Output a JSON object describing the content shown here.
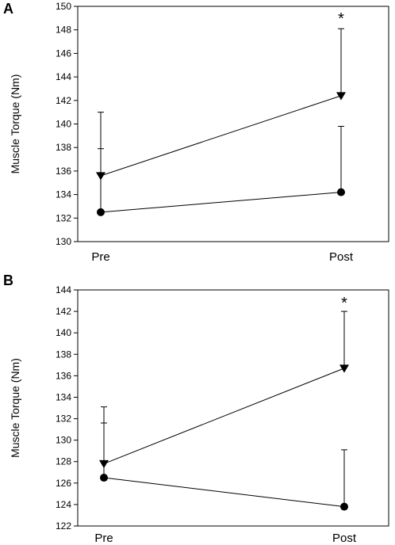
{
  "chart_data": [
    {
      "panel": "A",
      "type": "line",
      "categories": [
        "Pre",
        "Post"
      ],
      "ylabel": "Muscle Torque (Nm)",
      "ylim": [
        130,
        150
      ],
      "yticks": [
        "130",
        "132",
        "134",
        "136",
        "138",
        "140",
        "142",
        "144",
        "146",
        "148",
        "150"
      ],
      "grid": false,
      "annotation": "*",
      "series": [
        {
          "marker": "triangle-down",
          "values": [
            135.6,
            142.4
          ],
          "error_upper": [
            5.4,
            5.7
          ],
          "color": "#000000"
        },
        {
          "marker": "circle",
          "values": [
            132.5,
            134.2
          ],
          "error_upper": [
            5.4,
            5.6
          ],
          "color": "#000000"
        }
      ]
    },
    {
      "panel": "B",
      "type": "line",
      "categories": [
        "Pre",
        "Post"
      ],
      "ylabel": "Muscle Torque (Nm)",
      "ylim": [
        122,
        144
      ],
      "yticks": [
        "122",
        "124",
        "126",
        "128",
        "130",
        "132",
        "134",
        "136",
        "138",
        "140",
        "142",
        "144"
      ],
      "grid": false,
      "annotation": "*",
      "series": [
        {
          "marker": "triangle-down",
          "values": [
            127.8,
            136.7
          ],
          "error_upper": [
            3.8,
            5.3
          ],
          "color": "#000000"
        },
        {
          "marker": "circle",
          "values": [
            126.5,
            123.8
          ],
          "error_upper": [
            6.6,
            5.3
          ],
          "color": "#000000"
        }
      ]
    }
  ]
}
